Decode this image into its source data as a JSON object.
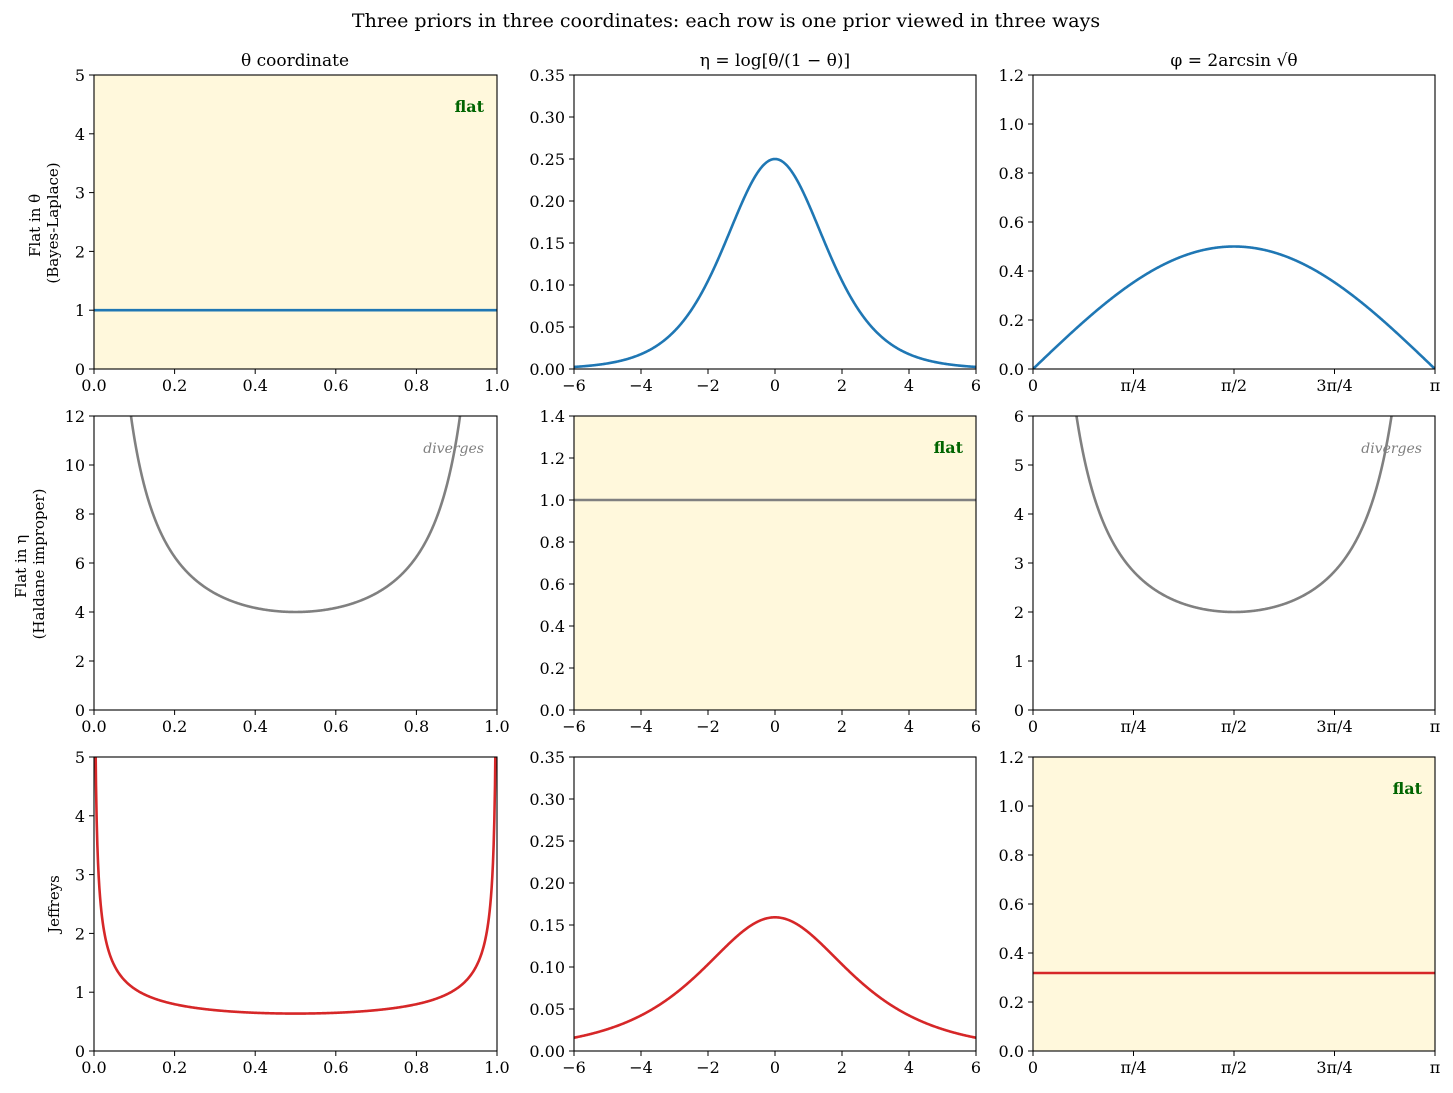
{
  "figure_title": "Three priors in three coordinates: each row is one prior viewed in three ways",
  "column_titles": [
    "θ coordinate",
    "η = log[θ/(1 − θ)]",
    "φ = 2arcsin √θ"
  ],
  "row_labels": [
    [
      "Flat in θ",
      "(Bayes-Laplace)"
    ],
    [
      "Flat in η",
      "(Haldane improper)"
    ],
    [
      "Jeffreys"
    ]
  ],
  "colors": {
    "row1": "#1f77b4",
    "row2": "#808080",
    "row3": "#d62728",
    "highlight": "#fff8dc",
    "flat_label": "#006400"
  },
  "chart_data": [
    {
      "type": "line",
      "row": 0,
      "col": 0,
      "series": [
        {
          "name": "",
          "formula": "p(θ) = 1"
        }
      ],
      "xlim": [
        0,
        1
      ],
      "ylim": [
        0,
        5
      ],
      "xticks": [
        "0.0",
        "0.2",
        "0.4",
        "0.6",
        "0.8",
        "1.0"
      ],
      "yticks": [
        "0",
        "1",
        "2",
        "3",
        "4",
        "5"
      ],
      "highlight": true,
      "annotation": "flat"
    },
    {
      "type": "line",
      "row": 0,
      "col": 1,
      "series": [
        {
          "name": "",
          "formula": "p(η) = e^η/(1+e^η)^2"
        }
      ],
      "xlim": [
        -6,
        6
      ],
      "ylim": [
        0,
        0.35
      ],
      "xticks": [
        "−6",
        "−4",
        "−2",
        "0",
        "2",
        "4",
        "6"
      ],
      "yticks": [
        "0.00",
        "0.05",
        "0.10",
        "0.15",
        "0.20",
        "0.25",
        "0.30",
        "0.35"
      ],
      "highlight": false,
      "annotation": ""
    },
    {
      "type": "line",
      "row": 0,
      "col": 2,
      "series": [
        {
          "name": "",
          "formula": "p(φ) = sin(φ)/2"
        }
      ],
      "xlim": [
        0,
        3.14159
      ],
      "ylim": [
        0,
        1.2
      ],
      "xticks": [
        "0",
        "π/4",
        "π/2",
        "3π/4",
        "π"
      ],
      "yticks": [
        "0.0",
        "0.2",
        "0.4",
        "0.6",
        "0.8",
        "1.0",
        "1.2"
      ],
      "highlight": false,
      "annotation": ""
    },
    {
      "type": "line",
      "row": 1,
      "col": 0,
      "series": [
        {
          "name": "",
          "formula": "p(θ) = 1/(θ(1−θ))"
        }
      ],
      "xlim": [
        0,
        1
      ],
      "ylim": [
        0,
        12
      ],
      "xticks": [
        "0.0",
        "0.2",
        "0.4",
        "0.6",
        "0.8",
        "1.0"
      ],
      "yticks": [
        "0",
        "2",
        "4",
        "6",
        "8",
        "10",
        "12"
      ],
      "highlight": false,
      "annotation": "diverges"
    },
    {
      "type": "line",
      "row": 1,
      "col": 1,
      "series": [
        {
          "name": "",
          "formula": "p(η) = 1"
        }
      ],
      "xlim": [
        -6,
        6
      ],
      "ylim": [
        0,
        1.4
      ],
      "xticks": [
        "−6",
        "−4",
        "−2",
        "0",
        "2",
        "4",
        "6"
      ],
      "yticks": [
        "0.0",
        "0.2",
        "0.4",
        "0.6",
        "0.8",
        "1.0",
        "1.2",
        "1.4"
      ],
      "highlight": true,
      "annotation": "flat"
    },
    {
      "type": "line",
      "row": 1,
      "col": 2,
      "series": [
        {
          "name": "",
          "formula": "p(φ) = 2/sin(φ)"
        }
      ],
      "xlim": [
        0,
        3.14159
      ],
      "ylim": [
        0,
        6
      ],
      "xticks": [
        "0",
        "π/4",
        "π/2",
        "3π/4",
        "π"
      ],
      "yticks": [
        "0",
        "1",
        "2",
        "3",
        "4",
        "5",
        "6"
      ],
      "highlight": false,
      "annotation": "diverges"
    },
    {
      "type": "line",
      "row": 2,
      "col": 0,
      "series": [
        {
          "name": "",
          "formula": "p(θ) = 1/(π√(θ(1−θ)))"
        }
      ],
      "xlim": [
        0,
        1
      ],
      "ylim": [
        0,
        5
      ],
      "xticks": [
        "0.0",
        "0.2",
        "0.4",
        "0.6",
        "0.8",
        "1.0"
      ],
      "yticks": [
        "0",
        "1",
        "2",
        "3",
        "4",
        "5"
      ],
      "highlight": false,
      "annotation": ""
    },
    {
      "type": "line",
      "row": 2,
      "col": 1,
      "series": [
        {
          "name": "",
          "formula": "p(η) = e^(η/2)/(π(1+e^η))"
        }
      ],
      "xlim": [
        -6,
        6
      ],
      "ylim": [
        0,
        0.35
      ],
      "xticks": [
        "−6",
        "−4",
        "−2",
        "0",
        "2",
        "4",
        "6"
      ],
      "yticks": [
        "0.00",
        "0.05",
        "0.10",
        "0.15",
        "0.20",
        "0.25",
        "0.30",
        "0.35"
      ],
      "highlight": false,
      "annotation": ""
    },
    {
      "type": "line",
      "row": 2,
      "col": 2,
      "series": [
        {
          "name": "",
          "formula": "p(φ) = 1/π"
        }
      ],
      "xlim": [
        0,
        3.14159
      ],
      "ylim": [
        0,
        1.2
      ],
      "xticks": [
        "0",
        "π/4",
        "π/2",
        "3π/4",
        "π"
      ],
      "yticks": [
        "0.0",
        "0.2",
        "0.4",
        "0.6",
        "0.8",
        "1.0",
        "1.2"
      ],
      "highlight": true,
      "annotation": "flat"
    }
  ]
}
